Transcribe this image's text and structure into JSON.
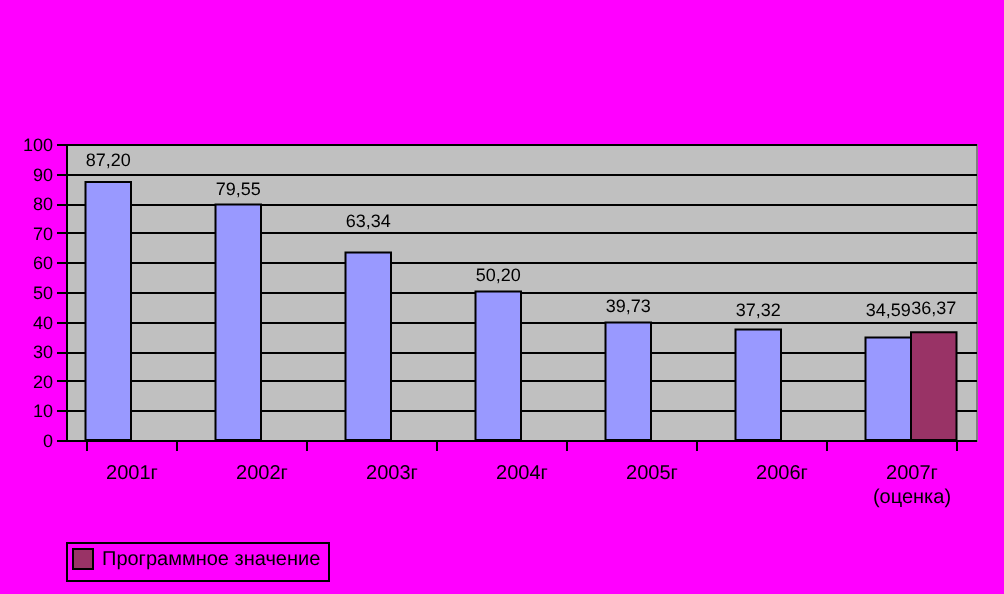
{
  "chart_data": {
    "type": "bar",
    "categories": [
      "2001г",
      "2002г",
      "2003г",
      "2004г",
      "2005г",
      "2006г",
      "2007г\n(оценка)"
    ],
    "series": [
      {
        "color": "#9999ff",
        "values": [
          87.2,
          79.55,
          63.34,
          50.2,
          39.73,
          37.32,
          34.59
        ],
        "value_labels": [
          "87,20",
          "79,55",
          "63,34",
          "50,20",
          "39,73",
          "37,32",
          "34,59"
        ]
      },
      {
        "name": "Программное значение",
        "color": "#993366",
        "values": [
          null,
          null,
          null,
          null,
          null,
          null,
          36.37
        ],
        "value_labels": [
          null,
          null,
          null,
          null,
          null,
          null,
          "36,37"
        ]
      }
    ],
    "ylim": [
      0,
      100
    ],
    "yticks": [
      0,
      10,
      20,
      30,
      40,
      50,
      60,
      70,
      80,
      90,
      100
    ],
    "grid": "y",
    "legend": "bottom"
  }
}
